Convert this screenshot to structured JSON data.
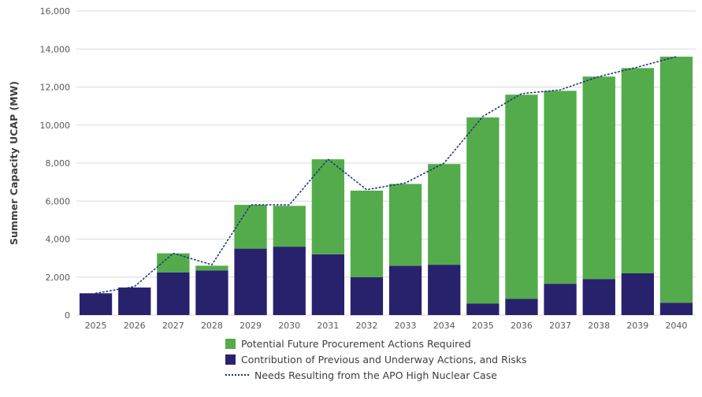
{
  "chart_data": {
    "type": "bar",
    "stacked": true,
    "title": "",
    "xlabel": "",
    "ylabel": "Summer Capacity UCAP (MW)",
    "ylim": [
      0,
      16000
    ],
    "ytick_step": 2000,
    "grid": true,
    "legend_position": "bottom",
    "categories": [
      "2025",
      "2026",
      "2027",
      "2028",
      "2029",
      "2030",
      "2031",
      "2032",
      "2033",
      "2034",
      "2035",
      "2036",
      "2037",
      "2038",
      "2039",
      "2040"
    ],
    "series": [
      {
        "name": "Contribution of Previous and Underway Actions, and Risks",
        "color": "#28226d",
        "values": [
          1150,
          1450,
          2250,
          2350,
          3500,
          3600,
          3200,
          2000,
          2600,
          2650,
          600,
          850,
          1650,
          1900,
          2200,
          650
        ]
      },
      {
        "name": "Potential Future Procurement Actions Required",
        "color": "#54ab4c",
        "values": [
          0,
          0,
          1000,
          250,
          2300,
          2150,
          5000,
          4550,
          4300,
          5300,
          9800,
          10750,
          10150,
          10650,
          10800,
          12950
        ]
      }
    ],
    "line_series": {
      "name": "Needs Resulting from the APO High Nuclear Case",
      "color": "#1f3478",
      "style": "dotted",
      "values": [
        1150,
        1500,
        3250,
        2650,
        5800,
        5800,
        8200,
        6600,
        6950,
        8000,
        10450,
        11650,
        11850,
        12550,
        13050,
        13600
      ]
    },
    "axis_colors": {
      "tick_label": "#595959",
      "gridline": "#d9d9d9",
      "axis_title": "#404040"
    }
  }
}
